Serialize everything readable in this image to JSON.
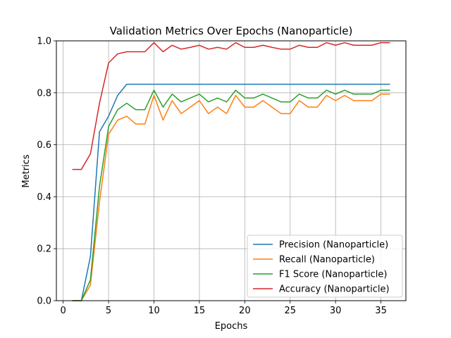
{
  "chart_data": {
    "type": "line",
    "title": "Validation Metrics Over Epochs (Nanoparticle)",
    "xlabel": "Epochs",
    "ylabel": "Metrics",
    "xlim": [
      -0.75,
      37.75
    ],
    "ylim": [
      0.0,
      1.0
    ],
    "xticks": [
      0,
      5,
      10,
      15,
      20,
      25,
      30,
      35
    ],
    "yticks": [
      0.0,
      0.2,
      0.4,
      0.6,
      0.8,
      1.0
    ],
    "xtick_labels": [
      "0",
      "5",
      "10",
      "15",
      "20",
      "25",
      "30",
      "35"
    ],
    "ytick_labels": [
      "0.0",
      "0.2",
      "0.4",
      "0.6",
      "0.8",
      "1.0"
    ],
    "grid": true,
    "legend_position": "lower-right",
    "x": [
      1,
      2,
      3,
      4,
      5,
      6,
      7,
      8,
      9,
      10,
      11,
      12,
      13,
      14,
      15,
      16,
      17,
      18,
      19,
      20,
      21,
      22,
      23,
      24,
      25,
      26,
      27,
      28,
      29,
      30,
      31,
      32,
      33,
      34,
      35,
      36
    ],
    "series": [
      {
        "name": "Precision (Nanoparticle)",
        "color": "#1f77b4",
        "values": [
          0.0,
          0.0,
          0.17,
          0.65,
          0.71,
          0.79,
          0.833,
          0.833,
          0.833,
          0.833,
          0.833,
          0.833,
          0.833,
          0.833,
          0.833,
          0.833,
          0.833,
          0.833,
          0.833,
          0.833,
          0.833,
          0.833,
          0.833,
          0.833,
          0.833,
          0.833,
          0.833,
          0.833,
          0.833,
          0.833,
          0.833,
          0.833,
          0.833,
          0.833,
          0.833,
          0.833
        ]
      },
      {
        "name": "Recall (Nanoparticle)",
        "color": "#ff7f0e",
        "values": [
          0.0,
          0.0,
          0.06,
          0.38,
          0.64,
          0.695,
          0.71,
          0.68,
          0.68,
          0.79,
          0.695,
          0.77,
          0.72,
          0.745,
          0.77,
          0.72,
          0.745,
          0.72,
          0.79,
          0.745,
          0.745,
          0.77,
          0.745,
          0.72,
          0.72,
          0.77,
          0.745,
          0.745,
          0.79,
          0.77,
          0.79,
          0.77,
          0.77,
          0.77,
          0.795,
          0.795
        ]
      },
      {
        "name": "F1 Score (Nanoparticle)",
        "color": "#2ca02c",
        "values": [
          0.0,
          0.0,
          0.08,
          0.44,
          0.67,
          0.735,
          0.76,
          0.735,
          0.735,
          0.81,
          0.745,
          0.795,
          0.765,
          0.78,
          0.795,
          0.765,
          0.78,
          0.765,
          0.81,
          0.78,
          0.78,
          0.795,
          0.78,
          0.765,
          0.765,
          0.795,
          0.78,
          0.78,
          0.81,
          0.795,
          0.81,
          0.795,
          0.795,
          0.795,
          0.81,
          0.81
        ]
      },
      {
        "name": "Accuracy (Nanoparticle)",
        "color": "#d62728",
        "values": [
          0.505,
          0.505,
          0.565,
          0.76,
          0.915,
          0.95,
          0.958,
          0.958,
          0.958,
          0.993,
          0.958,
          0.983,
          0.968,
          0.975,
          0.983,
          0.968,
          0.975,
          0.968,
          0.993,
          0.975,
          0.975,
          0.983,
          0.975,
          0.968,
          0.968,
          0.983,
          0.975,
          0.975,
          0.993,
          0.983,
          0.993,
          0.983,
          0.983,
          0.983,
          0.993,
          0.993
        ]
      }
    ]
  }
}
